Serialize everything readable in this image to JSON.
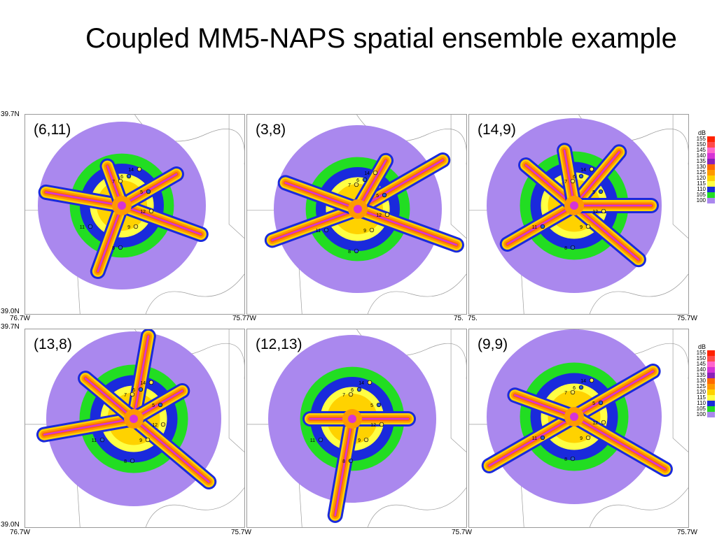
{
  "title": "Coupled MM5-NAPS spatial ensemble example",
  "axes": {
    "lat_top": "39.7N",
    "lat_bottom": "39.0N",
    "lon_left": "76.7W",
    "lon_right": "75.7W",
    "lon_right_trunc": "75.7",
    "lon_right_trunc2": "75.",
    "lon_left_trunc": "7W"
  },
  "panels": [
    {
      "label": "(6,11)"
    },
    {
      "label": "(3,8)"
    },
    {
      "label": "(14,9)"
    },
    {
      "label": "(13,8)"
    },
    {
      "label": "(12,13)"
    },
    {
      "label": "(9,9)"
    }
  ],
  "sites": [
    "14",
    "6",
    "7",
    "5",
    "12",
    "11",
    "9",
    "8"
  ],
  "legend": {
    "title": "dB",
    "levels": [
      {
        "label": "155",
        "color": "#ff2200"
      },
      {
        "label": "150",
        "color": "#ff4a4a"
      },
      {
        "label": "145",
        "color": "#ff66cc"
      },
      {
        "label": "140",
        "color": "#d633d6"
      },
      {
        "label": "135",
        "color": "#8a22b8"
      },
      {
        "label": "130",
        "color": "#ff6a00"
      },
      {
        "label": "125",
        "color": "#ff9a00"
      },
      {
        "label": "120",
        "color": "#ffd200"
      },
      {
        "label": "115",
        "color": "#ffff44"
      },
      {
        "label": "110",
        "color": "#1a2adc"
      },
      {
        "label": "105",
        "color": "#22dd22"
      },
      {
        "label": "100",
        "color": "#aa88ee"
      }
    ]
  }
}
